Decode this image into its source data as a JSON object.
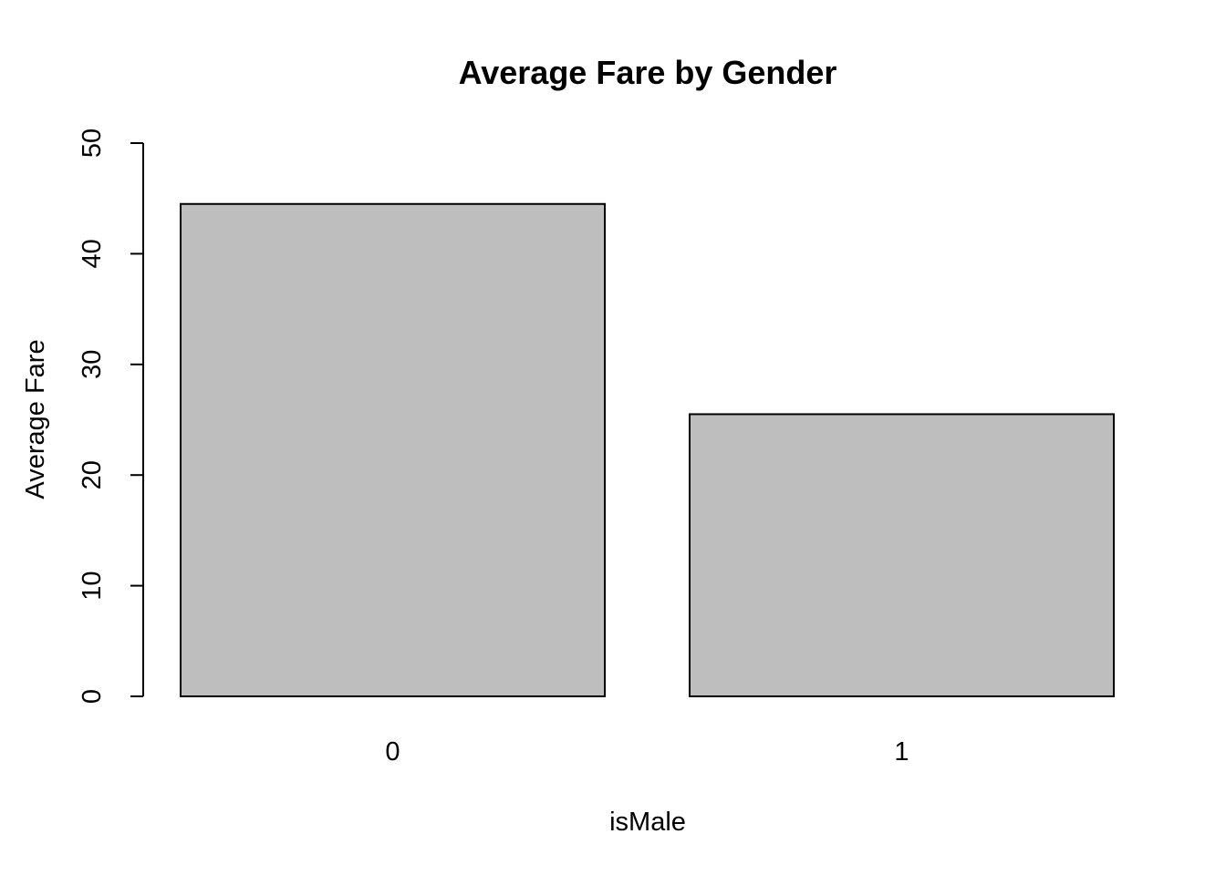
{
  "chart_data": {
    "type": "bar",
    "title": "Average Fare by Gender",
    "xlabel": "isMale",
    "ylabel": "Average Fare",
    "categories": [
      "0",
      "1"
    ],
    "values": [
      44.5,
      25.5
    ],
    "ylim": [
      0,
      50
    ],
    "yticks": [
      "0",
      "10",
      "20",
      "30",
      "40",
      "50"
    ],
    "grid": false,
    "legend": "none",
    "bar_color": "#bebebe",
    "border_color": "#000000"
  }
}
